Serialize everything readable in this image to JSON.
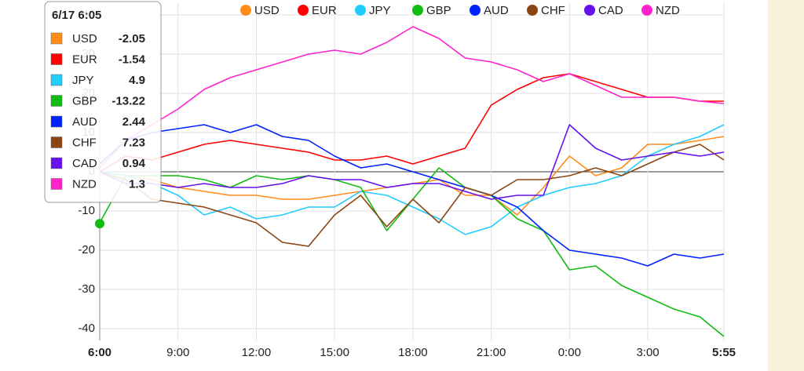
{
  "chart_data": {
    "type": "line",
    "categories": [
      "6:00",
      "7:00",
      "8:00",
      "9:00",
      "10:00",
      "11:00",
      "12:00",
      "13:00",
      "14:00",
      "15:00",
      "16:00",
      "17:00",
      "18:00",
      "19:00",
      "20:00",
      "21:00",
      "22:00",
      "23:00",
      "0:00",
      "1:00",
      "2:00",
      "3:00",
      "4:00",
      "5:00",
      "5:55"
    ],
    "series": [
      {
        "name": "USD",
        "color": "#ff8c1a",
        "values": [
          0,
          -1,
          -2,
          -4,
          -5,
          -6,
          -6,
          -7,
          -7,
          -6,
          -5,
          -4,
          -3,
          -2,
          -6,
          -6,
          -11,
          -4,
          4,
          -1,
          1,
          7,
          7,
          8,
          9
        ]
      },
      {
        "name": "EUR",
        "color": "#ff0000",
        "values": [
          0,
          4,
          3,
          5,
          7,
          8,
          7,
          6,
          5,
          3,
          3,
          4,
          2,
          4,
          6,
          17,
          21,
          24,
          25,
          23,
          21,
          19,
          19,
          18,
          18
        ]
      },
      {
        "name": "JPY",
        "color": "#22ccff",
        "values": [
          0,
          -1,
          -3,
          -6,
          -11,
          -9,
          -12,
          -11,
          -9,
          -9,
          -5,
          -6,
          -9,
          -12,
          -16,
          -14,
          -9,
          -6,
          -4,
          -3,
          -1,
          4,
          7,
          9,
          12
        ]
      },
      {
        "name": "GBP",
        "color": "#11bb11",
        "values": [
          -13,
          -1,
          -1,
          -1,
          -2,
          -4,
          -1,
          -2,
          -1,
          -2,
          -4,
          -15,
          -7,
          1,
          -4,
          -6,
          -12,
          -15,
          -25,
          -24,
          -29,
          -32,
          -35,
          -37,
          -42
        ]
      },
      {
        "name": "AUD",
        "color": "#0022ff",
        "values": [
          2,
          8,
          10,
          11,
          12,
          10,
          12,
          9,
          8,
          4,
          1,
          2,
          0,
          -2,
          -4,
          -6,
          -9,
          -15,
          -20,
          -21,
          -22,
          -24,
          -21,
          -22,
          -21
        ]
      },
      {
        "name": "CHF",
        "color": "#8b4513",
        "values": [
          0,
          -2,
          -7,
          -8,
          -9,
          -11,
          -13,
          -18,
          -19,
          -11,
          -6,
          -14,
          -7,
          -13,
          -4,
          -6,
          -2,
          -2,
          -1,
          1,
          -1,
          2,
          5,
          7,
          3
        ]
      },
      {
        "name": "CAD",
        "color": "#6611ee",
        "values": [
          0,
          -3,
          -3,
          -4,
          -3,
          -4,
          -4,
          -3,
          -1,
          -2,
          -2,
          -4,
          -3,
          -3,
          -5,
          -7,
          -6,
          -6,
          12,
          6,
          3,
          4,
          5,
          4,
          5
        ]
      },
      {
        "name": "NZD",
        "color": "#ff22cc",
        "values": [
          1,
          8,
          12,
          16,
          21,
          24,
          26,
          28,
          30,
          31,
          30,
          33,
          37,
          34,
          29,
          28,
          26,
          23,
          25,
          22,
          19,
          19,
          19,
          18,
          17.4
        ]
      }
    ],
    "xticks": [
      "6:00",
      "9:00",
      "12:00",
      "15:00",
      "18:00",
      "21:00",
      "0:00",
      "3:00",
      "5:55"
    ],
    "ylim": [
      -43,
      43
    ],
    "yticks": [
      -40,
      -30,
      -20,
      -10,
      0,
      10,
      20,
      30,
      40
    ],
    "grid": true,
    "tooltip": {
      "title": "6/17 6:05",
      "values": [
        -2.05,
        -1.54,
        4.9,
        -13.22,
        2.44,
        7.23,
        0.94,
        1.3
      ]
    }
  }
}
